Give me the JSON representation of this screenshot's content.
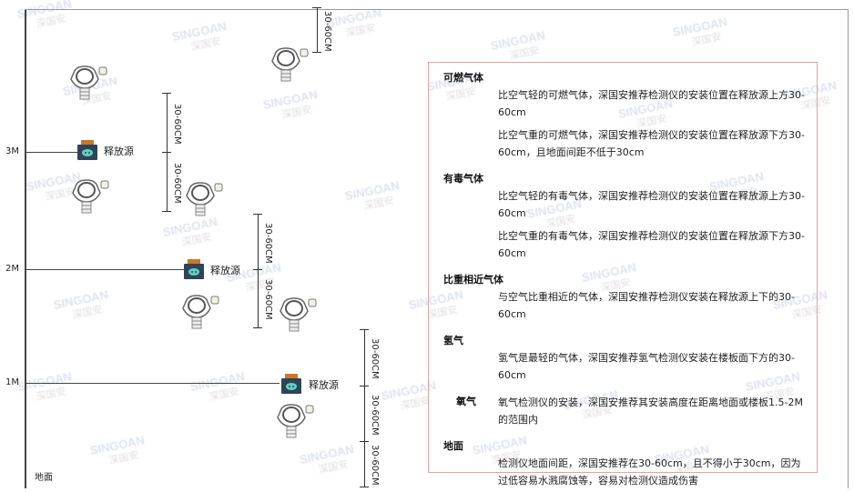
{
  "watermark": {
    "brand": "SINGOAN",
    "cn": "深国安"
  },
  "levels": [
    "3M",
    "2M",
    "1M"
  ],
  "ground_label": "地面",
  "source_label": "释放源",
  "dim_label": "30-60CM",
  "panel": {
    "sections": [
      {
        "title": "可燃气体",
        "paras": [
          "比空气轻的可燃气体，深国安推荐检测仪的安装位置在释放源上方30-60cm",
          "比空气重的可燃气体，深国安推荐检测仪的安装位置在释放源下方30-60cm，且地面间距不低于30cm"
        ]
      },
      {
        "title": "有毒气体",
        "paras": [
          "比空气轻的有毒气体，深国安推荐检测仪的安装位置在释放源上方30-60cm",
          "比空气重的有毒气体，深国安推荐检测仪的安装位置在释放源下方30-60cm"
        ]
      },
      {
        "title": "比重相近气体",
        "paras": [
          "与空气比重相近的气体，深国安推荐检测仪安装在释放源上下的30-60cm"
        ]
      },
      {
        "title": "氢气",
        "paras": [
          "氢气是最轻的气体，深国安推荐氢气检测仪安装在楼板面下方的30-60cm"
        ]
      },
      {
        "title": "氧气",
        "paras": [
          "氧气检测仪的安装，深国安推荐其安装高度在距离地面或楼板1.5-2M的范围内"
        ]
      },
      {
        "title": "地面",
        "paras": [
          "检测仪地面间距，深国安推荐在30-60cm，且不得小于30cm，因为过低容易水溅腐蚀等，容易对检测仪造成伤害"
        ]
      }
    ]
  },
  "colors": {
    "panel_border": "#e8a0a0",
    "source_body": "#2f4456",
    "source_cap": "#c8782a"
  }
}
